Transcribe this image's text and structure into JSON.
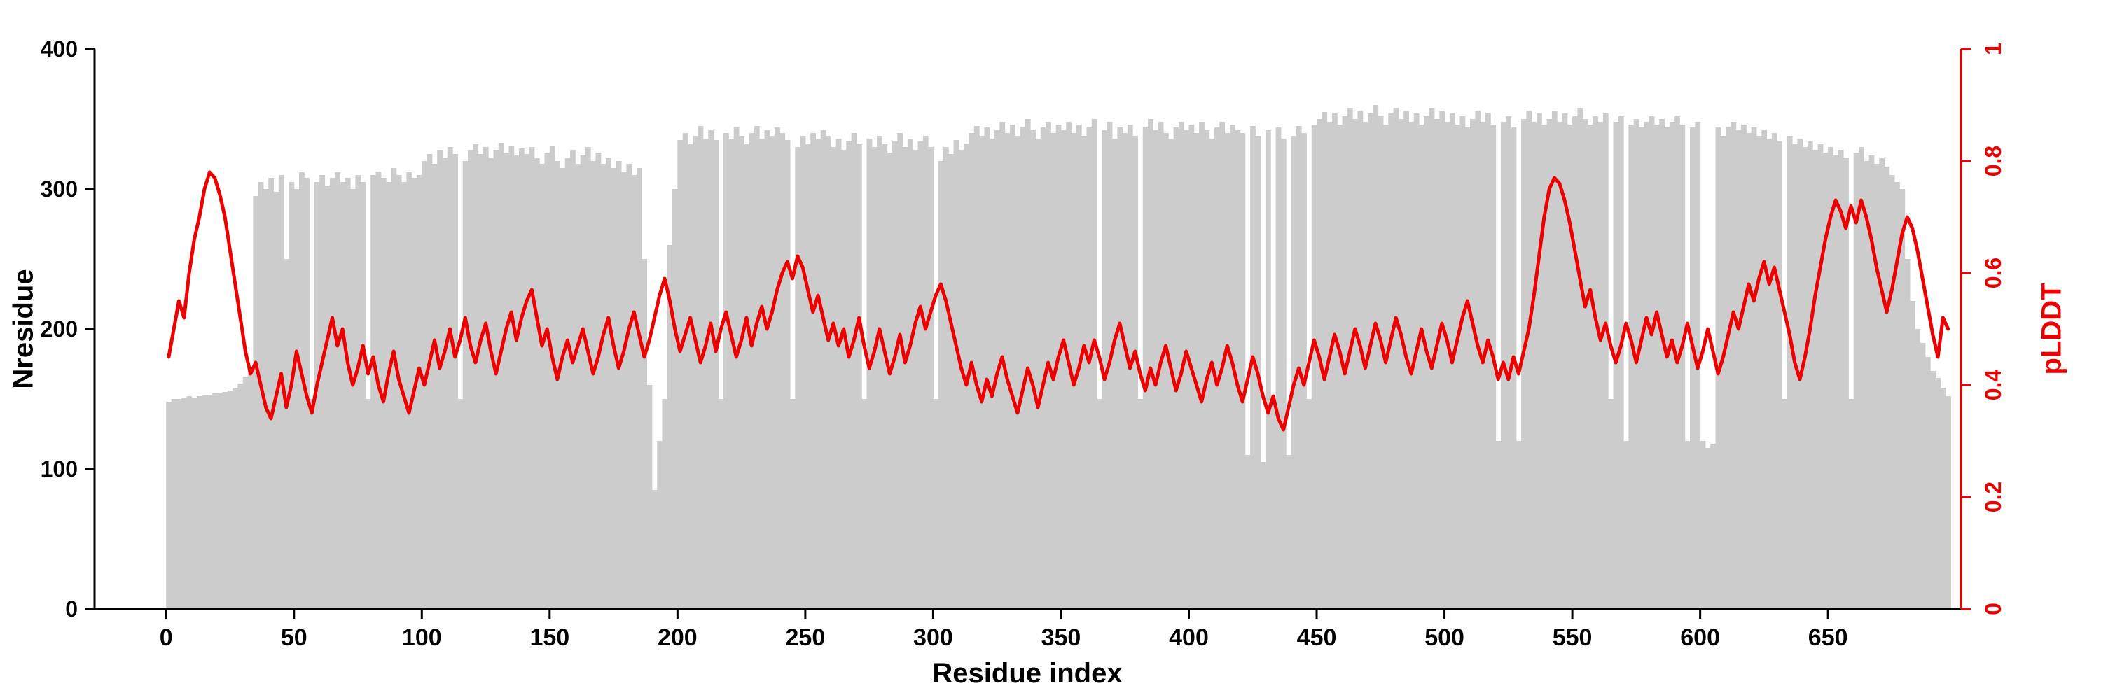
{
  "colors": {
    "bar_gray": "#cccccc",
    "accent_red": "#ee0000",
    "axis_black": "#000000",
    "background": "#ffffff"
  },
  "chart_data": {
    "type": "composite",
    "title": "",
    "xlabel": "Residue index",
    "ylabel_left": "Nresidue",
    "ylabel_right": "pLDDT",
    "xlim": [
      -28,
      702
    ],
    "ylim_left": [
      0,
      400
    ],
    "ylim_right": [
      0,
      1
    ],
    "xticks": [
      0,
      50,
      100,
      150,
      200,
      250,
      300,
      350,
      400,
      450,
      500,
      550,
      600,
      650
    ],
    "yticks_left": [
      0,
      100,
      200,
      300,
      400
    ],
    "yticks_right": [
      0,
      0.2,
      0.4,
      0.6,
      0.8,
      1
    ],
    "grid": false,
    "legend": "none",
    "series": [
      {
        "name": "Nresidue",
        "type": "bar",
        "axis": "left",
        "color": "#cccccc",
        "x_start": 1,
        "x_step": 2,
        "values": [
          148,
          150,
          150,
          151,
          152,
          151,
          152,
          153,
          153,
          154,
          154,
          155,
          156,
          158,
          161,
          166,
          172,
          295,
          305,
          300,
          308,
          298,
          310,
          250,
          305,
          300,
          312,
          308,
          150,
          305,
          310,
          302,
          308,
          312,
          305,
          308,
          300,
          310,
          305,
          150,
          310,
          312,
          308,
          305,
          315,
          310,
          305,
          312,
          308,
          310,
          320,
          325,
          318,
          328,
          322,
          330,
          325,
          150,
          320,
          328,
          332,
          325,
          330,
          322,
          328,
          333,
          326,
          331,
          324,
          329,
          325,
          330,
          322,
          318,
          326,
          331,
          320,
          315,
          322,
          328,
          318,
          324,
          330,
          320,
          326,
          318,
          322,
          315,
          320,
          312,
          318,
          310,
          315,
          250,
          160,
          85,
          120,
          150,
          260,
          300,
          335,
          340,
          332,
          338,
          345,
          336,
          342,
          335,
          150,
          340,
          336,
          344,
          338,
          332,
          340,
          345,
          336,
          342,
          338,
          344,
          340,
          335,
          150,
          330,
          338,
          332,
          340,
          336,
          342,
          338,
          330,
          336,
          328,
          334,
          340,
          332,
          150,
          336,
          330,
          338,
          332,
          326,
          334,
          340,
          330,
          336,
          328,
          334,
          338,
          330,
          150,
          320,
          330,
          325,
          335,
          328,
          332,
          340,
          345,
          338,
          344,
          336,
          342,
          348,
          340,
          346,
          338,
          344,
          350,
          342,
          336,
          344,
          348,
          340,
          346,
          342,
          348,
          340,
          346,
          338,
          344,
          350,
          150,
          342,
          348,
          336,
          344,
          340,
          346,
          338,
          150,
          344,
          350,
          342,
          348,
          340,
          336,
          344,
          348,
          342,
          346,
          340,
          348,
          342,
          336,
          344,
          348,
          340,
          346,
          342,
          340,
          110,
          345,
          338,
          105,
          342,
          150,
          344,
          336,
          110,
          338,
          345,
          340,
          150,
          346,
          350,
          355,
          348,
          354,
          346,
          352,
          358,
          350,
          356,
          348,
          354,
          360,
          352,
          346,
          354,
          358,
          350,
          356,
          348,
          354,
          346,
          352,
          358,
          350,
          356,
          348,
          354,
          346,
          352,
          344,
          350,
          356,
          348,
          354,
          346,
          120,
          348,
          352,
          344,
          120,
          350,
          356,
          348,
          354,
          346,
          350,
          356,
          348,
          354,
          346,
          352,
          358,
          350,
          346,
          352,
          348,
          354,
          150,
          348,
          352,
          120,
          346,
          350,
          344,
          348,
          352,
          346,
          350,
          344,
          348,
          352,
          346,
          120,
          344,
          348,
          120,
          115,
          118,
          344,
          338,
          344,
          348,
          342,
          346,
          340,
          344,
          338,
          342,
          336,
          340,
          334,
          150,
          338,
          332,
          336,
          330,
          334,
          328,
          332,
          326,
          330,
          324,
          328,
          322,
          150,
          326,
          330,
          320,
          324,
          318,
          322,
          316,
          310,
          305,
          300,
          250,
          220,
          200,
          190,
          180,
          170,
          165,
          158,
          152
        ]
      },
      {
        "name": "pLDDT",
        "type": "line",
        "axis": "right",
        "color": "#ee0000",
        "x_start": 1,
        "x_step": 2,
        "values": [
          0.45,
          0.5,
          0.55,
          0.52,
          0.6,
          0.66,
          0.7,
          0.75,
          0.78,
          0.77,
          0.74,
          0.7,
          0.64,
          0.58,
          0.52,
          0.46,
          0.42,
          0.44,
          0.4,
          0.36,
          0.34,
          0.38,
          0.42,
          0.36,
          0.4,
          0.46,
          0.42,
          0.38,
          0.35,
          0.4,
          0.44,
          0.48,
          0.52,
          0.47,
          0.5,
          0.44,
          0.4,
          0.43,
          0.47,
          0.42,
          0.45,
          0.4,
          0.37,
          0.42,
          0.46,
          0.41,
          0.38,
          0.35,
          0.39,
          0.43,
          0.4,
          0.44,
          0.48,
          0.43,
          0.46,
          0.5,
          0.45,
          0.48,
          0.52,
          0.47,
          0.44,
          0.48,
          0.51,
          0.46,
          0.42,
          0.46,
          0.5,
          0.53,
          0.48,
          0.52,
          0.55,
          0.57,
          0.52,
          0.47,
          0.5,
          0.45,
          0.41,
          0.45,
          0.48,
          0.44,
          0.47,
          0.5,
          0.46,
          0.42,
          0.45,
          0.49,
          0.52,
          0.47,
          0.43,
          0.46,
          0.5,
          0.53,
          0.49,
          0.45,
          0.48,
          0.52,
          0.56,
          0.59,
          0.55,
          0.5,
          0.46,
          0.49,
          0.52,
          0.48,
          0.44,
          0.47,
          0.51,
          0.46,
          0.5,
          0.53,
          0.49,
          0.45,
          0.48,
          0.52,
          0.47,
          0.51,
          0.54,
          0.5,
          0.53,
          0.57,
          0.6,
          0.62,
          0.59,
          0.63,
          0.61,
          0.57,
          0.53,
          0.56,
          0.52,
          0.48,
          0.51,
          0.47,
          0.5,
          0.45,
          0.48,
          0.52,
          0.47,
          0.43,
          0.46,
          0.5,
          0.46,
          0.42,
          0.45,
          0.49,
          0.44,
          0.47,
          0.51,
          0.54,
          0.5,
          0.53,
          0.56,
          0.58,
          0.55,
          0.51,
          0.47,
          0.43,
          0.4,
          0.44,
          0.4,
          0.37,
          0.41,
          0.38,
          0.42,
          0.45,
          0.41,
          0.38,
          0.35,
          0.39,
          0.43,
          0.4,
          0.36,
          0.4,
          0.44,
          0.41,
          0.45,
          0.48,
          0.44,
          0.4,
          0.43,
          0.47,
          0.44,
          0.48,
          0.45,
          0.41,
          0.44,
          0.48,
          0.51,
          0.47,
          0.43,
          0.46,
          0.42,
          0.39,
          0.43,
          0.4,
          0.44,
          0.47,
          0.43,
          0.39,
          0.42,
          0.46,
          0.43,
          0.4,
          0.37,
          0.41,
          0.44,
          0.4,
          0.43,
          0.47,
          0.44,
          0.4,
          0.37,
          0.41,
          0.45,
          0.42,
          0.38,
          0.35,
          0.38,
          0.34,
          0.32,
          0.36,
          0.4,
          0.43,
          0.4,
          0.44,
          0.48,
          0.45,
          0.41,
          0.45,
          0.49,
          0.46,
          0.42,
          0.46,
          0.5,
          0.47,
          0.43,
          0.47,
          0.51,
          0.48,
          0.44,
          0.48,
          0.52,
          0.49,
          0.45,
          0.42,
          0.46,
          0.5,
          0.46,
          0.43,
          0.47,
          0.51,
          0.48,
          0.44,
          0.48,
          0.52,
          0.55,
          0.51,
          0.47,
          0.44,
          0.48,
          0.45,
          0.41,
          0.44,
          0.41,
          0.45,
          0.42,
          0.46,
          0.5,
          0.56,
          0.63,
          0.7,
          0.75,
          0.77,
          0.76,
          0.73,
          0.69,
          0.64,
          0.59,
          0.54,
          0.57,
          0.52,
          0.48,
          0.51,
          0.47,
          0.44,
          0.47,
          0.51,
          0.48,
          0.44,
          0.48,
          0.52,
          0.49,
          0.53,
          0.49,
          0.45,
          0.48,
          0.44,
          0.47,
          0.51,
          0.47,
          0.43,
          0.46,
          0.5,
          0.46,
          0.42,
          0.45,
          0.49,
          0.53,
          0.5,
          0.54,
          0.58,
          0.55,
          0.59,
          0.62,
          0.58,
          0.61,
          0.57,
          0.53,
          0.49,
          0.44,
          0.41,
          0.45,
          0.5,
          0.56,
          0.61,
          0.66,
          0.7,
          0.73,
          0.71,
          0.68,
          0.72,
          0.69,
          0.73,
          0.7,
          0.66,
          0.61,
          0.57,
          0.53,
          0.57,
          0.62,
          0.67,
          0.7,
          0.68,
          0.64,
          0.59,
          0.54,
          0.49,
          0.45,
          0.52,
          0.5
        ]
      }
    ]
  }
}
